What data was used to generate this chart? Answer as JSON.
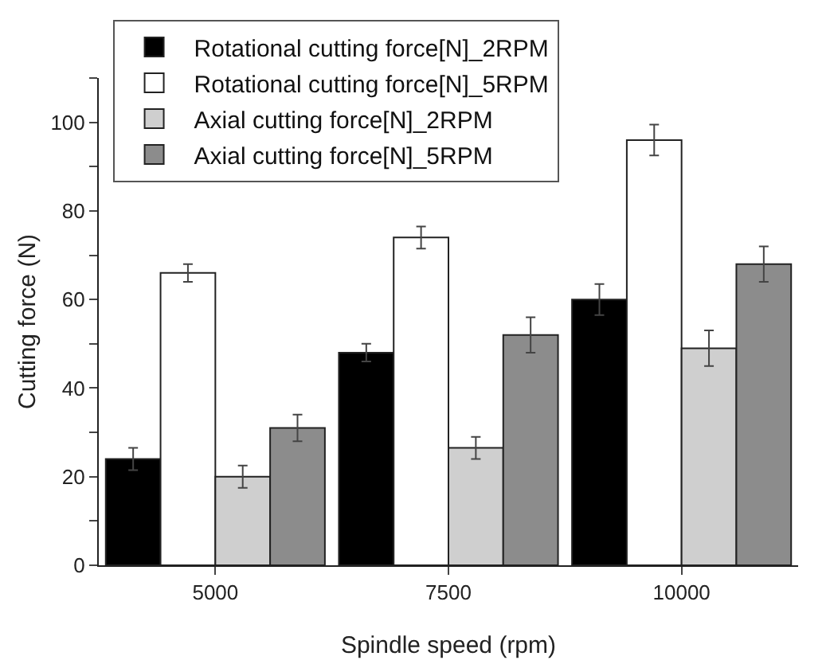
{
  "chart_data": {
    "type": "bar",
    "xlabel": "Spindle speed (rpm)",
    "ylabel": "Cutting force (N)",
    "categories": [
      "5000",
      "7500",
      "10000"
    ],
    "series": [
      {
        "name": "Rotational cutting force[N]_2RPM",
        "color": "#000000",
        "values": [
          24,
          48,
          60
        ],
        "errors": [
          2.5,
          2,
          3.5
        ]
      },
      {
        "name": "Rotational cutting force[N]_5RPM",
        "color": "#ffffff",
        "values": [
          66,
          74,
          96
        ],
        "errors": [
          2,
          2.5,
          3.5
        ]
      },
      {
        "name": "Axial cutting force[N]_2RPM",
        "color": "#cfcfcf",
        "values": [
          20,
          26.5,
          49
        ],
        "errors": [
          2.5,
          2.5,
          4
        ]
      },
      {
        "name": "Axial cutting force[N]_5RPM",
        "color": "#8c8c8c",
        "values": [
          31,
          52,
          68
        ],
        "errors": [
          3,
          4,
          4
        ]
      }
    ],
    "ylim": [
      0,
      110
    ],
    "yticks": [
      0,
      {
        "value": 10,
        "label": null
      },
      20,
      {
        "value": 30,
        "label": null
      },
      40,
      {
        "value": 50,
        "label": null
      },
      60,
      {
        "value": 70,
        "label": null
      },
      80,
      {
        "value": 90,
        "label": null
      },
      100,
      {
        "value": 110,
        "label": null
      }
    ],
    "grid": false,
    "legend": "top left"
  }
}
